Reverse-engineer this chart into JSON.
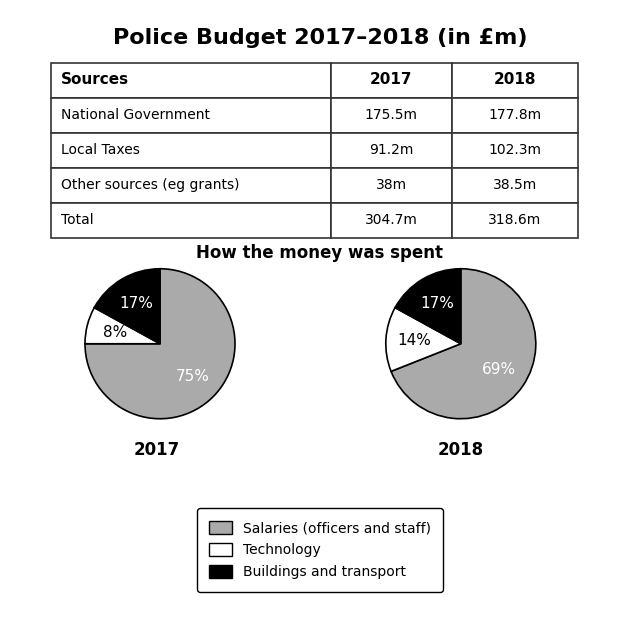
{
  "title": "Police Budget 2017–2018 (in £m)",
  "table": {
    "headers": [
      "Sources",
      "2017",
      "2018"
    ],
    "rows": [
      [
        "National Government",
        "175.5m",
        "177.8m"
      ],
      [
        "Local Taxes",
        "91.2m",
        "102.3m"
      ],
      [
        "Other sources (eg grants)",
        "38m",
        "38.5m"
      ],
      [
        "Total",
        "304.7m",
        "318.6m"
      ]
    ]
  },
  "pie_title": "How the money was spent",
  "pie_2017": {
    "label": "2017",
    "values": [
      75,
      8,
      17
    ],
    "labels": [
      "75%",
      "8%",
      "17%"
    ],
    "colors": [
      "#aaaaaa",
      "#ffffff",
      "#000000"
    ],
    "startangle": 90,
    "label_colors": [
      "white",
      "black",
      "white"
    ]
  },
  "pie_2018": {
    "label": "2018",
    "values": [
      69,
      14,
      17
    ],
    "labels": [
      "69%",
      "14%",
      "17%"
    ],
    "colors": [
      "#aaaaaa",
      "#ffffff",
      "#000000"
    ],
    "startangle": 90,
    "label_colors": [
      "white",
      "black",
      "white"
    ]
  },
  "legend_labels": [
    "Salaries (officers and staff)",
    "Technology",
    "Buildings and transport"
  ],
  "legend_colors": [
    "#aaaaaa",
    "#ffffff",
    "#000000"
  ],
  "background_color": "#ffffff",
  "title_fontsize": 16,
  "pie_title_fontsize": 12,
  "table_header_fontsize": 11,
  "table_body_fontsize": 10,
  "pie_label_fontsize": 11,
  "year_label_fontsize": 12,
  "legend_fontsize": 10
}
